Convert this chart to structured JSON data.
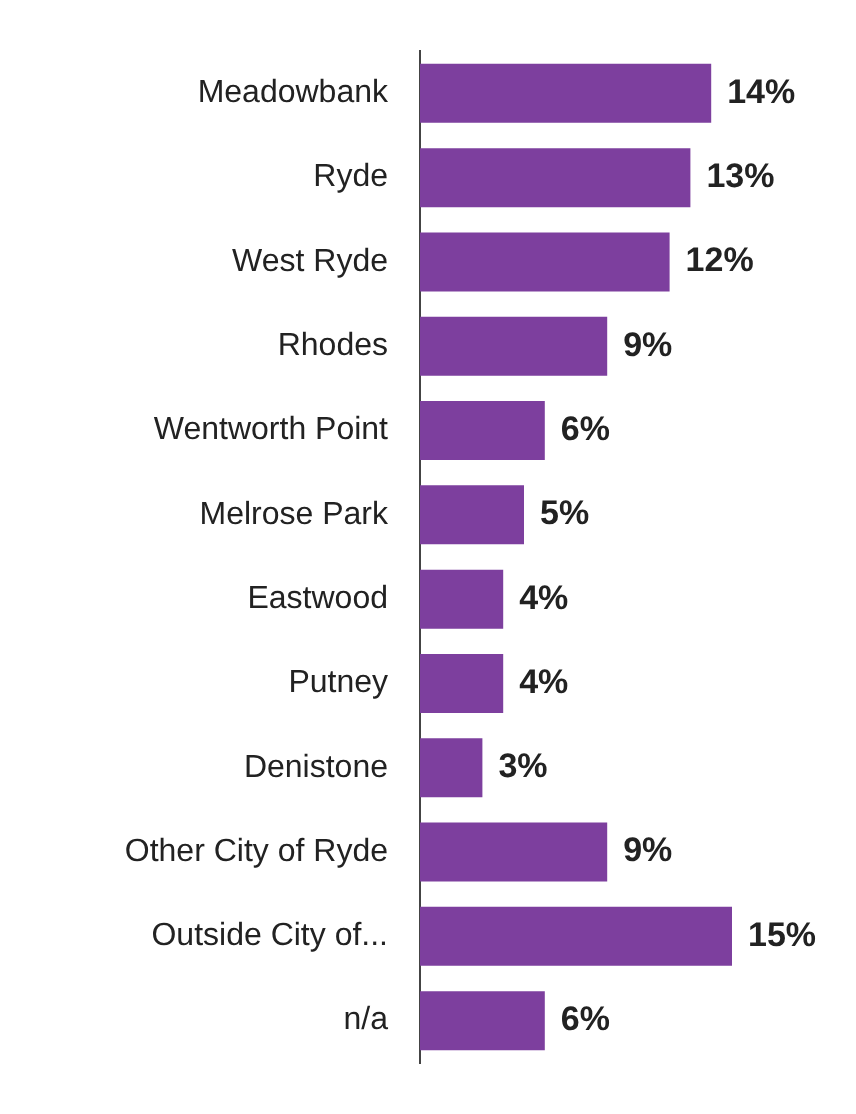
{
  "chart_data": {
    "type": "bar",
    "orientation": "horizontal",
    "categories": [
      "Meadowbank",
      "Ryde",
      "West Ryde",
      "Rhodes",
      "Wentworth Point",
      "Melrose Park",
      "Eastwood",
      "Putney",
      "Denistone",
      "Other City of Ryde",
      "Outside City of...",
      "n/a"
    ],
    "values": [
      14,
      13,
      12,
      9,
      6,
      5,
      4,
      4,
      3,
      9,
      15,
      6
    ],
    "value_labels": [
      "14%",
      "13%",
      "12%",
      "9%",
      "6%",
      "5%",
      "4%",
      "4%",
      "3%",
      "9%",
      "15%",
      "6%"
    ],
    "color": "#7d3f9e",
    "tick_labels": "y"
  }
}
